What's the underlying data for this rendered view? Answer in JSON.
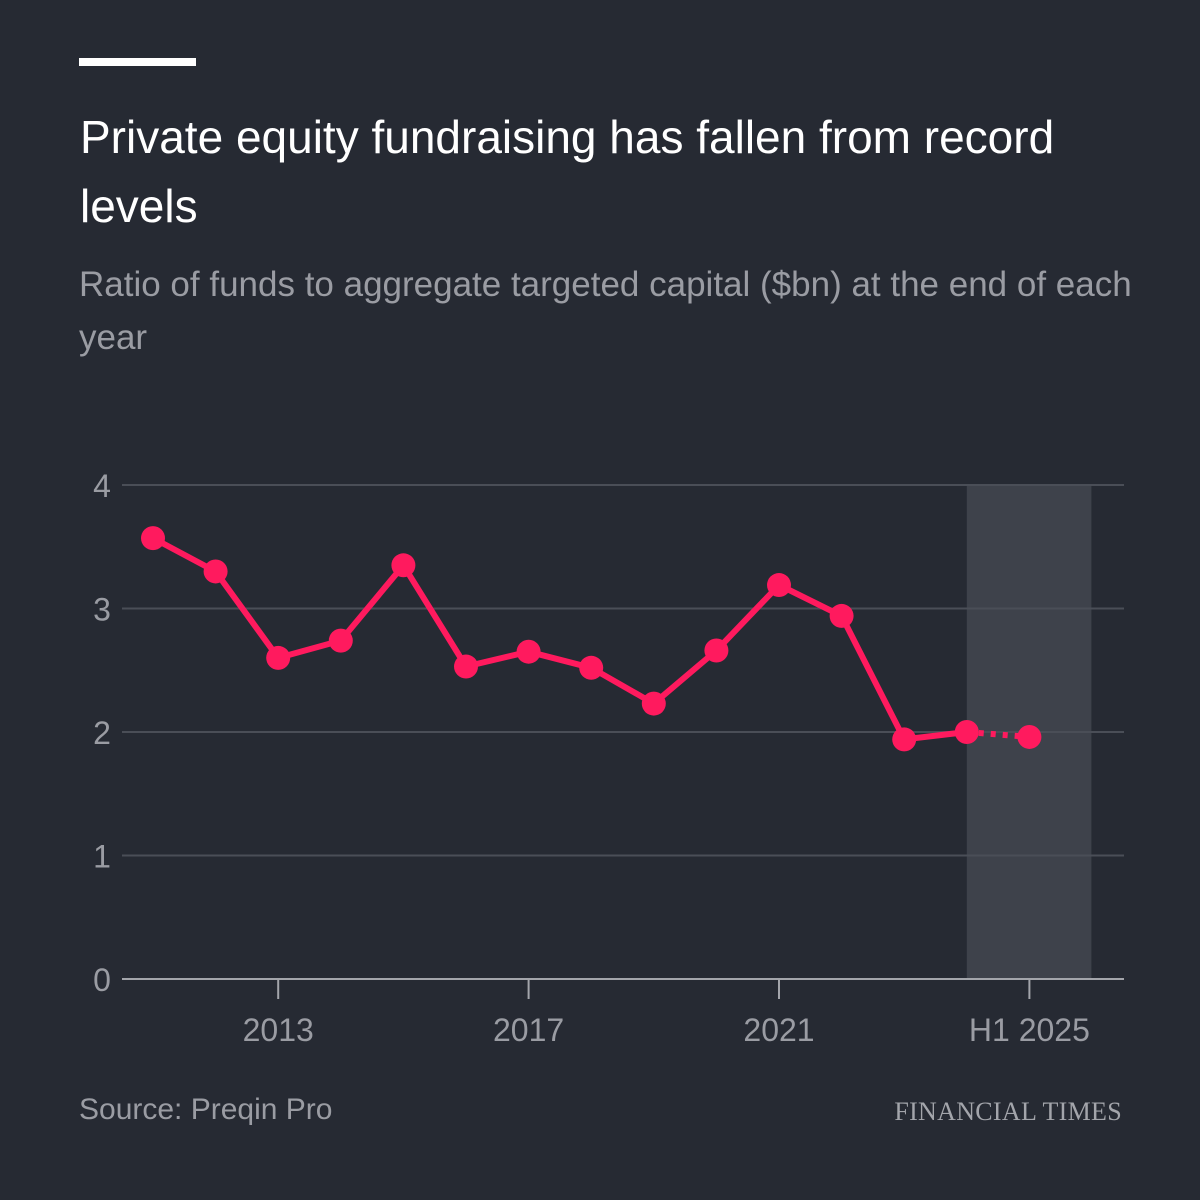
{
  "header": {
    "title": "Private equity fundraising has fallen from record levels",
    "subtitle": "Ratio of funds to aggregate targeted capital ($bn) at the end of each year"
  },
  "footer": {
    "source": "Source: Preqin Pro",
    "brand": "FINANCIAL TIMES"
  },
  "colors": {
    "background": "#262a33",
    "series": "#ff1a5e",
    "gridline": "#4a4e57",
    "axis": "#a3a5ab",
    "tick_label": "#9a9ca3",
    "highlight_band": "#3e424b"
  },
  "chart_data": {
    "type": "line",
    "title": "Private equity fundraising has fallen from record levels",
    "subtitle": "Ratio of funds to aggregate targeted capital ($bn) at the end of each year",
    "xlabel": "",
    "ylabel": "",
    "x": [
      "2011",
      "2012",
      "2013",
      "2014",
      "2015",
      "2016",
      "2017",
      "2018",
      "2019",
      "2020",
      "2021",
      "2022",
      "2023",
      "2024",
      "H1 2025"
    ],
    "x_tick_labels": [
      "2013",
      "2017",
      "2021",
      "H1 2025"
    ],
    "y_ticks": [
      0,
      1,
      2,
      3,
      4
    ],
    "ylim": [
      0,
      4
    ],
    "grid": true,
    "series": [
      {
        "values": [
          3.57,
          3.3,
          2.6,
          2.74,
          3.35,
          2.53,
          2.65,
          2.52,
          2.23,
          2.66,
          3.19,
          2.94,
          1.94,
          2.0,
          1.96
        ],
        "dotted_last_segment": true
      }
    ],
    "highlight_band": {
      "from": "2024",
      "to": "H1 2025",
      "description": "shaded period"
    }
  }
}
